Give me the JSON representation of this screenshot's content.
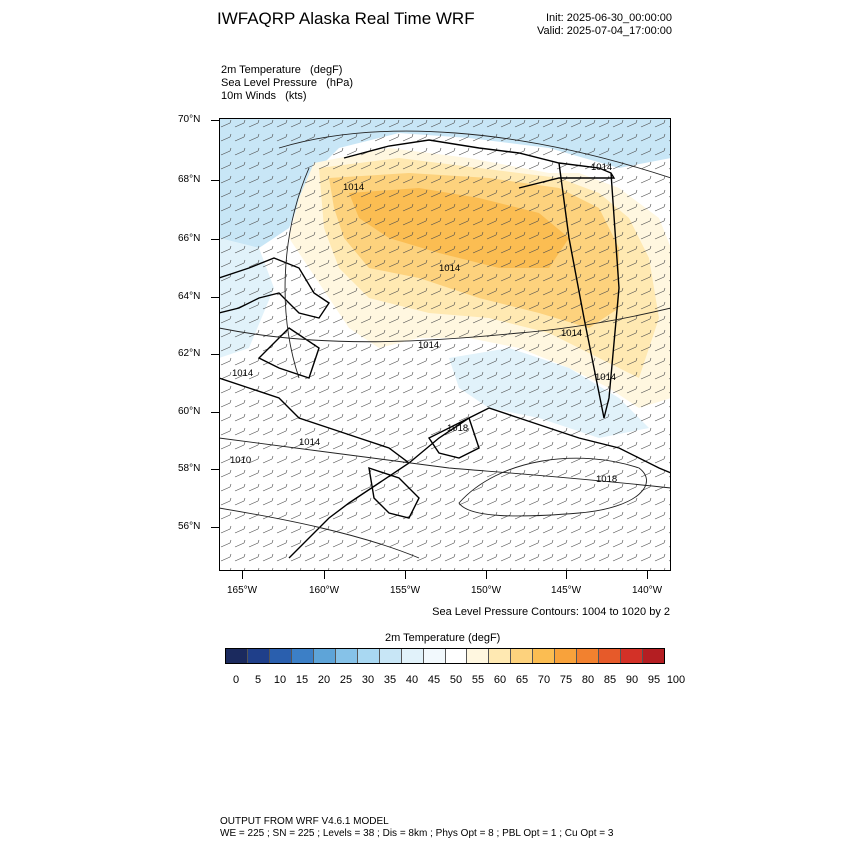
{
  "title": "IWFAQRP Alaska Real Time WRF",
  "init": "Init: 2025-06-30_00:00:00",
  "valid": "Valid: 2025-07-04_17:00:00",
  "fields": [
    "2m Temperature   (degF)",
    "Sea Level Pressure   (hPa)",
    "10m Winds   (kts)"
  ],
  "lat_labels": [
    "70°N",
    "68°N",
    "66°N",
    "64°N",
    "62°N",
    "60°N",
    "58°N",
    "56°N"
  ],
  "lon_labels": [
    "165°W",
    "160°W",
    "155°W",
    "150°W",
    "145°W",
    "140°W"
  ],
  "slp_contour_labels": [
    "1014",
    "1014",
    "1014",
    "1014",
    "1014",
    "1014",
    "1014",
    "1010",
    "1018",
    "1018",
    "1014"
  ],
  "contour_note": "Sea Level Pressure Contours: 1004 to 1020 by 2",
  "colorbar": {
    "title": "2m Temperature  (degF)",
    "labels": [
      "0",
      "5",
      "10",
      "15",
      "20",
      "25",
      "30",
      "35",
      "40",
      "45",
      "50",
      "55",
      "60",
      "65",
      "70",
      "75",
      "80",
      "85",
      "90",
      "95",
      "100"
    ],
    "colors": [
      "#1b2a5e",
      "#1f3f8a",
      "#2a5fae",
      "#3c7fc6",
      "#5ea4d8",
      "#86c2e8",
      "#a9d8f2",
      "#c8e6f6",
      "#e1f2fa",
      "#f2f9fd",
      "#ffffff",
      "#fff7e0",
      "#ffe9b2",
      "#fdd27d",
      "#fbbd52",
      "#f8a23b",
      "#f2812f",
      "#e65a2a",
      "#d33127",
      "#b41e22",
      "#8e1518"
    ]
  },
  "footer": {
    "line1": "OUTPUT FROM WRF V4.6.1 MODEL",
    "line2": "WE = 225 ; SN = 225 ; Levels = 38 ; Dis = 8km ; Phys Opt = 8 ; PBL Opt = 1 ; Cu Opt = 3"
  }
}
